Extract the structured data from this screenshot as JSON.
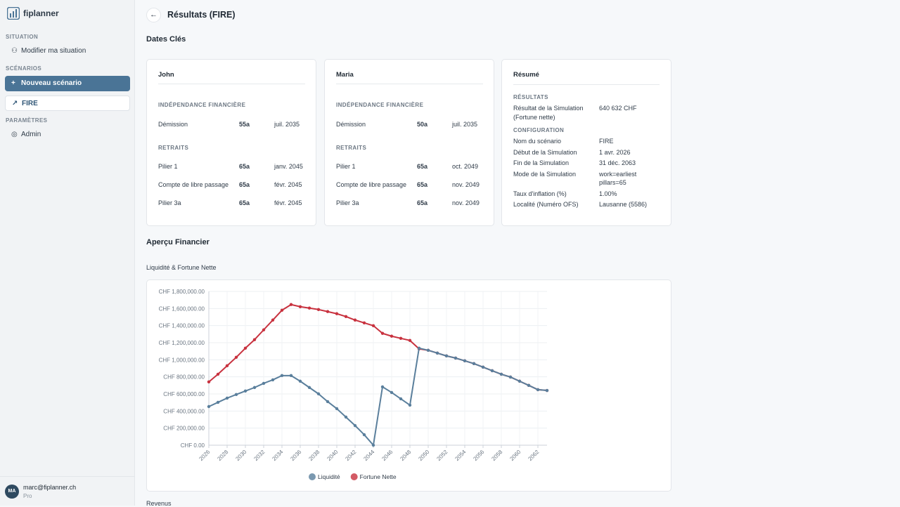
{
  "sidebar": {
    "brand": "fiplanner",
    "sections": [
      {
        "heading": "SITUATION",
        "items": [
          "Modifier ma situation"
        ]
      },
      {
        "heading": "SCÉNARIOS",
        "items": [
          "Nouveau scénario",
          "FIRE"
        ]
      },
      {
        "heading": "PARAMÈTRES",
        "items": [
          "Admin"
        ]
      }
    ],
    "user": {
      "initials": "MA",
      "email": "marc@fiplanner.ch",
      "plan": "Pro"
    }
  },
  "header": {
    "title": "Résultats (FIRE)"
  },
  "dates_title": "Dates Clés",
  "people": [
    {
      "name": "John",
      "fi_heading": "INDÉPENDANCE FINANCIÈRE",
      "fi_rows": [
        [
          "Démission",
          "55a",
          "juil. 2035"
        ]
      ],
      "ret_heading": "RETRAITS",
      "ret_rows": [
        [
          "Pilier 1",
          "65a",
          "janv. 2045"
        ],
        [
          "Compte de libre passage",
          "65a",
          "févr. 2045"
        ],
        [
          "Pilier 3a",
          "65a",
          "févr. 2045"
        ]
      ]
    },
    {
      "name": "Maria",
      "fi_heading": "INDÉPENDANCE FINANCIÈRE",
      "fi_rows": [
        [
          "Démission",
          "50a",
          "juil. 2035"
        ]
      ],
      "ret_heading": "RETRAITS",
      "ret_rows": [
        [
          "Pilier 1",
          "65a",
          "oct. 2049"
        ],
        [
          "Compte de libre passage",
          "65a",
          "nov. 2049"
        ],
        [
          "Pilier 3a",
          "65a",
          "nov. 2049"
        ]
      ]
    }
  ],
  "summary": {
    "title": "Résumé",
    "results_heading": "RÉSULTATS",
    "results": [
      [
        "Résultat de la Simulation (Fortune nette)",
        "640 632 CHF"
      ]
    ],
    "config_heading": "CONFIGURATION",
    "config": [
      [
        "Nom du scénario",
        "FIRE"
      ],
      [
        "Début de la Simulation",
        "1 avr. 2026"
      ],
      [
        "Fin de la Simulation",
        "31 déc. 2063"
      ],
      [
        "Mode de la Simulation",
        "work=earliest pillars=65"
      ],
      [
        "Taux d'inflation (%)",
        "1.00%"
      ],
      [
        "Localité (Numéro OFS)",
        "Lausanne (5586)"
      ]
    ]
  },
  "overview_title": "Aperçu Financier",
  "chart_data": {
    "type": "line",
    "title": "Liquidité & Fortune Nette",
    "x": [
      2026,
      2027,
      2028,
      2029,
      2030,
      2031,
      2032,
      2033,
      2034,
      2035,
      2036,
      2037,
      2038,
      2039,
      2040,
      2041,
      2042,
      2043,
      2044,
      2045,
      2046,
      2047,
      2048,
      2049,
      2050,
      2051,
      2052,
      2053,
      2054,
      2055,
      2056,
      2057,
      2058,
      2059,
      2060,
      2061,
      2062,
      2063
    ],
    "series": [
      {
        "name": "Fortune Nette",
        "color": "#c8323f",
        "values": [
          741000,
          831000,
          930000,
          1029000,
          1136000,
          1235000,
          1350000,
          1465000,
          1580000,
          1646000,
          1621000,
          1605000,
          1588000,
          1564000,
          1539000,
          1506000,
          1465000,
          1432000,
          1399000,
          1309000,
          1276000,
          1251000,
          1226000,
          1128000,
          1111000,
          1078000,
          1045000,
          1020000,
          988000,
          955000,
          914000,
          872000,
          831000,
          798000,
          749000,
          700000,
          650000,
          640632
        ]
      },
      {
        "name": "Liquidité",
        "color": "#5a7f9c",
        "values": [
          452000,
          502000,
          551000,
          593000,
          634000,
          675000,
          724000,
          765000,
          815000,
          815000,
          749000,
          675000,
          601000,
          510000,
          428000,
          329000,
          230000,
          123000,
          0,
          683000,
          617000,
          543000,
          469000,
          1136000,
          1111000,
          1078000,
          1045000,
          1020000,
          988000,
          955000,
          914000,
          872000,
          831000,
          798000,
          749000,
          700000,
          650000,
          640632
        ]
      }
    ],
    "legend_order": [
      "Liquidité",
      "Fortune Nette"
    ],
    "xlim": [
      2026,
      2063
    ],
    "xticks": [
      2026,
      2028,
      2030,
      2032,
      2034,
      2036,
      2038,
      2040,
      2042,
      2044,
      2046,
      2048,
      2050,
      2052,
      2054,
      2056,
      2058,
      2060,
      2062
    ],
    "ylim": [
      0,
      1800000
    ],
    "yticks": [
      {
        "value": 0,
        "label": "CHF 0.00"
      },
      {
        "value": 200000,
        "label": "CHF 200,000.00"
      },
      {
        "value": 400000,
        "label": "CHF 400,000.00"
      },
      {
        "value": 600000,
        "label": "CHF 600,000.00"
      },
      {
        "value": 800000,
        "label": "CHF 800,000.00"
      },
      {
        "value": 1000000,
        "label": "CHF 1,000,000.00"
      },
      {
        "value": 1200000,
        "label": "CHF 1,200,000.00"
      },
      {
        "value": 1400000,
        "label": "CHF 1,400,000.00"
      },
      {
        "value": 1600000,
        "label": "CHF 1,600,000.00"
      },
      {
        "value": 1800000,
        "label": "CHF 1,800,000.00"
      }
    ],
    "grid": true
  },
  "next_section": "Revenus"
}
